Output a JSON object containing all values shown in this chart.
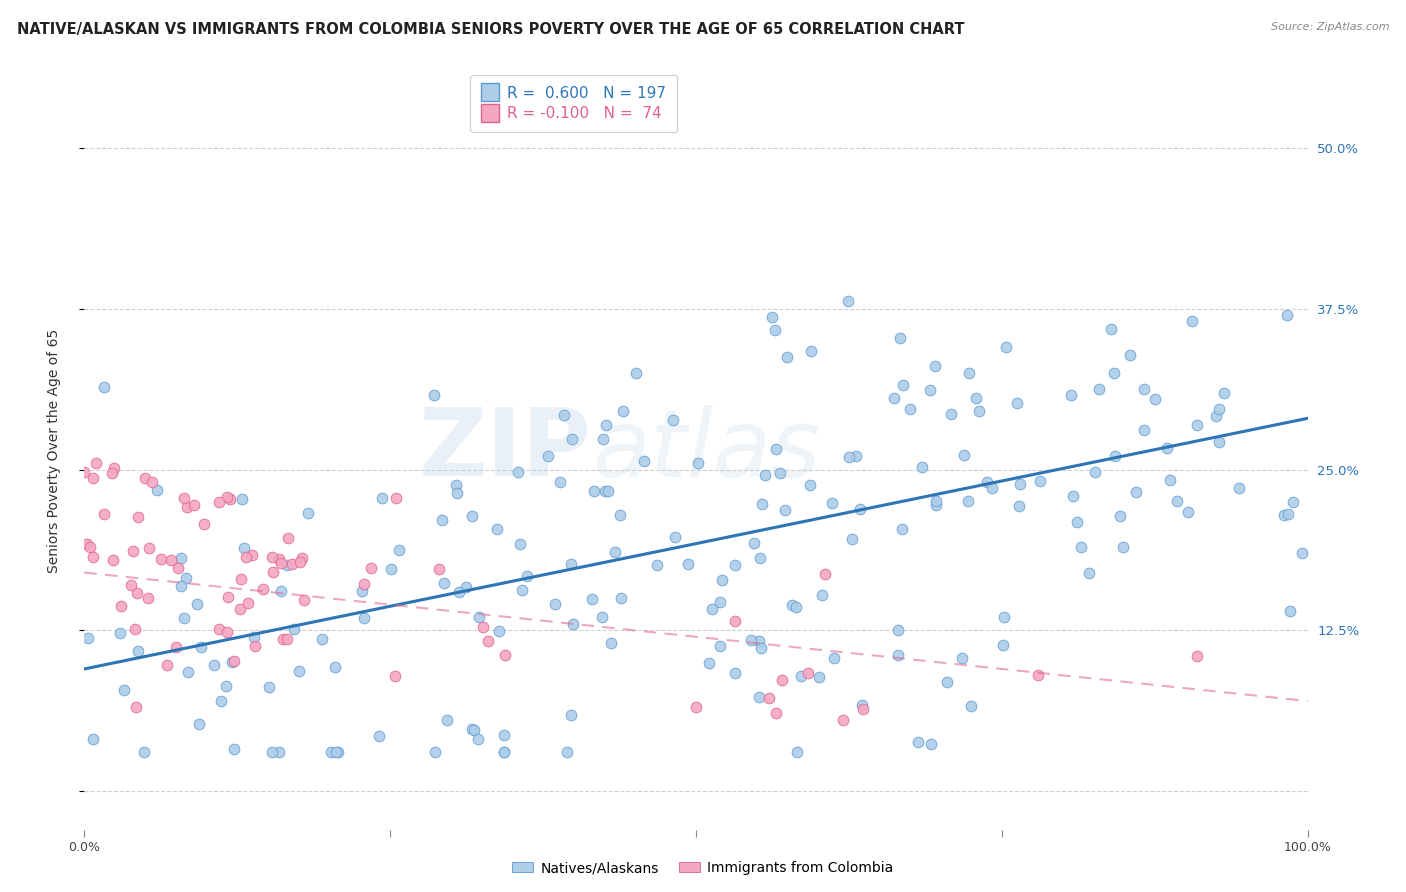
{
  "title": "NATIVE/ALASKAN VS IMMIGRANTS FROM COLOMBIA SENIORS POVERTY OVER THE AGE OF 65 CORRELATION CHART",
  "source": "Source: ZipAtlas.com",
  "ylabel": "Seniors Poverty Over the Age of 65",
  "xlim": [
    0,
    1.0
  ],
  "ylim": [
    -0.03,
    0.56
  ],
  "ytick_positions": [
    0.0,
    0.125,
    0.25,
    0.375,
    0.5
  ],
  "yticklabels_right": [
    "",
    "12.5%",
    "25.0%",
    "37.5%",
    "50.0%"
  ],
  "xtick_positions": [
    0.0,
    0.25,
    0.5,
    0.75,
    1.0
  ],
  "xticklabels": [
    "0.0%",
    "",
    "",
    "",
    "100.0%"
  ],
  "blue_R": 0.6,
  "blue_N": 197,
  "pink_R": -0.1,
  "pink_N": 74,
  "blue_color": "#aecde8",
  "blue_edge_color": "#5b9bd5",
  "blue_line_color": "#2e75b6",
  "pink_color": "#f4a7c3",
  "pink_edge_color": "#e06090",
  "pink_line_color": "#e06090",
  "watermark_zip": "ZIP",
  "watermark_atlas": "atlas",
  "background_color": "#ffffff",
  "grid_color": "#d0d0d0",
  "title_color": "#222222",
  "source_color": "#888888",
  "tick_label_color_blue": "#2e75b6",
  "title_fontsize": 10.5,
  "axis_label_fontsize": 10,
  "tick_fontsize": 9,
  "legend_fontsize": 11
}
